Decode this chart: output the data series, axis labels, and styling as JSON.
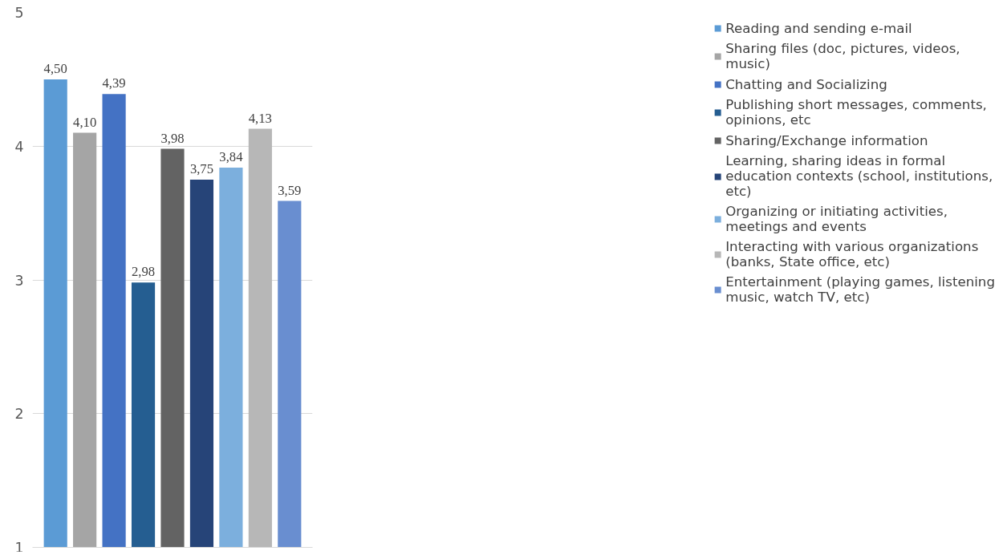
{
  "chart_data": {
    "type": "bar",
    "categories": [
      null
    ],
    "series": [
      {
        "name": "Reading and sending e-mail",
        "color": "#5b9bd5",
        "values": [
          4.5
        ],
        "value_labels": [
          "4,50"
        ]
      },
      {
        "name": "Sharing files (doc, pictures, videos, music)",
        "color": "#a5a5a5",
        "values": [
          4.1
        ],
        "value_labels": [
          "4,10"
        ]
      },
      {
        "name": "Chatting and Socializing",
        "color": "#4472c4",
        "values": [
          4.39
        ],
        "value_labels": [
          "4,39"
        ]
      },
      {
        "name": "Publishing short messages, comments, opinions, etc",
        "color": "#255e91",
        "values": [
          2.98
        ],
        "value_labels": [
          "2,98"
        ]
      },
      {
        "name": "Sharing/Exchange information",
        "color": "#636363",
        "values": [
          3.98
        ],
        "value_labels": [
          "3,98"
        ]
      },
      {
        "name": "Learning, sharing ideas in formal education contexts (school, institutions, etc)",
        "color": "#264478",
        "values": [
          3.75
        ],
        "value_labels": [
          "3,75"
        ]
      },
      {
        "name": "Organizing or initiating activities, meetings and events",
        "color": "#7cafdd",
        "values": [
          3.84
        ],
        "value_labels": [
          "3,84"
        ]
      },
      {
        "name": "Interacting with various organizations (banks, State office, etc)",
        "color": "#b7b7b7",
        "values": [
          4.13
        ],
        "value_labels": [
          "4,13"
        ]
      },
      {
        "name": "Entertainment (playing games, listening music, watch TV, etc)",
        "color": "#698ed0",
        "values": [
          3.59
        ],
        "value_labels": [
          "3,59"
        ]
      }
    ],
    "ylim": [
      1,
      5
    ],
    "yticks": [
      1,
      2,
      3,
      4,
      5
    ],
    "grid": "y",
    "legend": "right"
  }
}
